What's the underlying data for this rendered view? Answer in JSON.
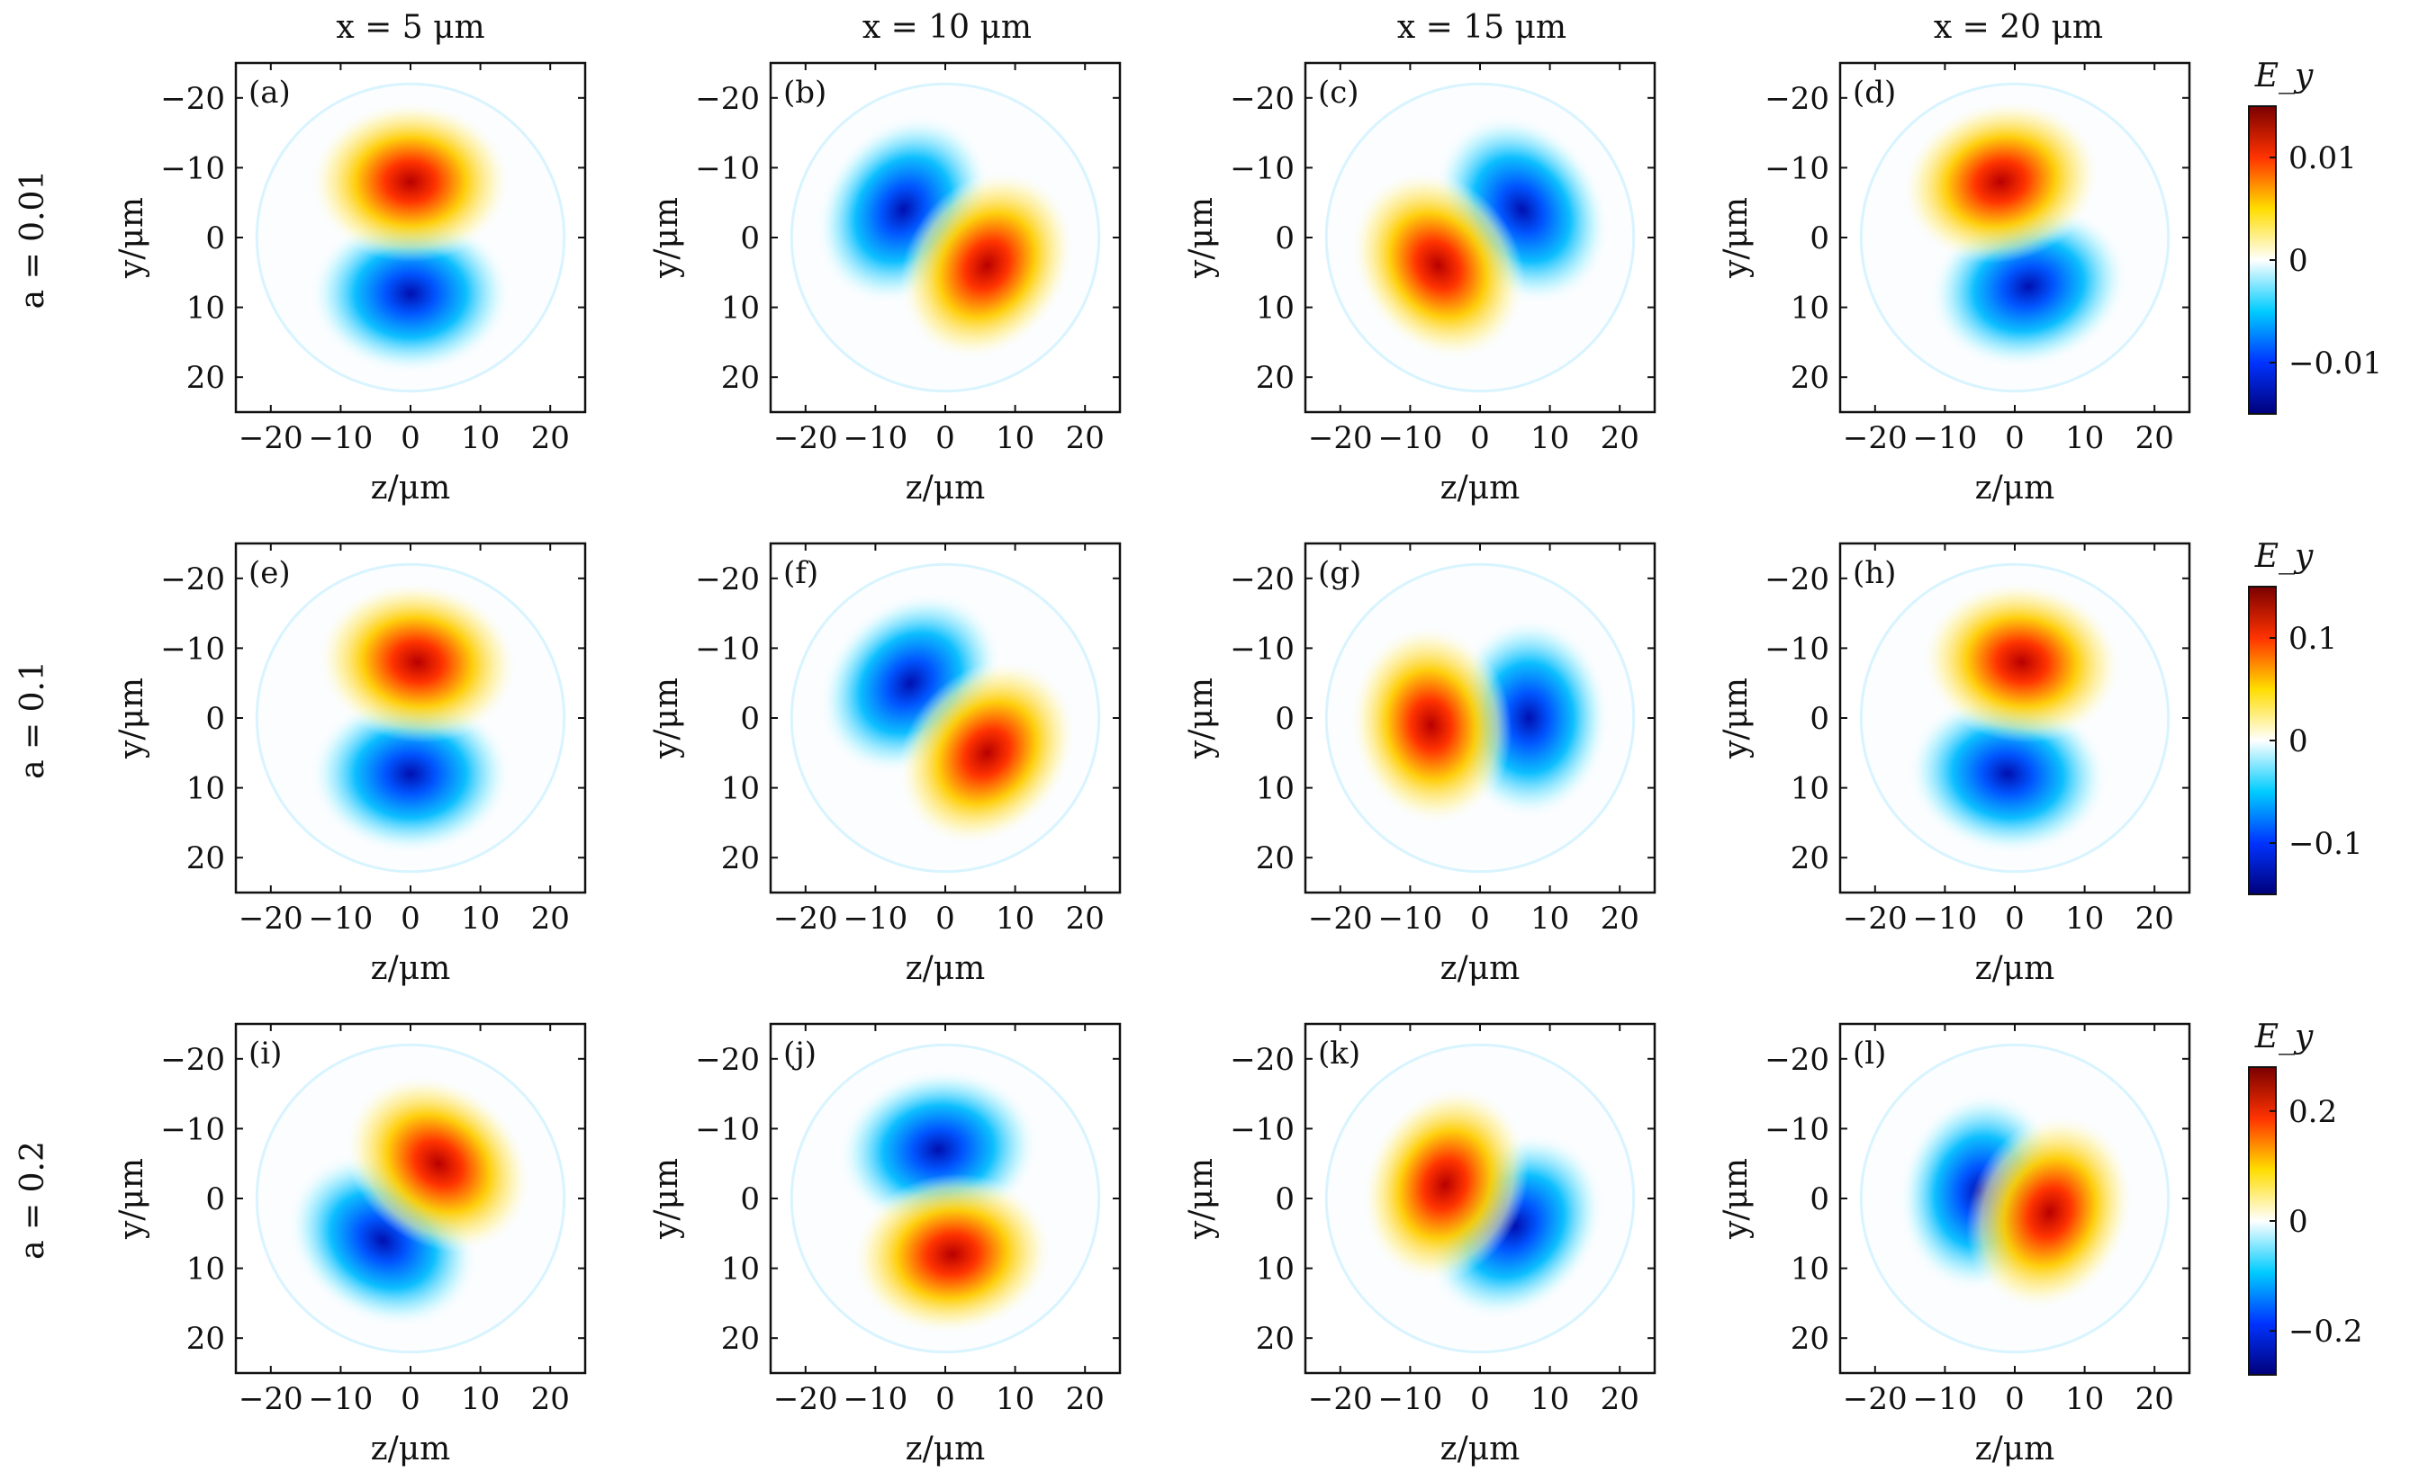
{
  "figure": {
    "column_titles": [
      "x = 5 μm",
      "x = 10 μm",
      "x = 15 μm",
      "x = 20 μm"
    ],
    "row_labels": [
      "a = 0.01",
      "a = 0.1",
      "a = 0.2"
    ],
    "colorbars": [
      {
        "label": "E_y",
        "ticks": [
          0.01,
          0,
          -0.01
        ],
        "tick_labels": [
          "0.01",
          "0",
          "−0.01"
        ],
        "range": [
          -0.015,
          0.015
        ]
      },
      {
        "label": "E_y",
        "ticks": [
          0.1,
          0,
          -0.1
        ],
        "tick_labels": [
          "0.1",
          "0",
          "−0.1"
        ],
        "range": [
          -0.15,
          0.15
        ]
      },
      {
        "label": "E_y",
        "ticks": [
          0.2,
          0,
          -0.2
        ],
        "tick_labels": [
          "0.2",
          "0",
          "−0.2"
        ],
        "range": [
          -0.28,
          0.28
        ]
      }
    ],
    "colormap": [
      "#00007a",
      "#0033ff",
      "#00ccff",
      "#ffffff",
      "#ffdd00",
      "#ff3300",
      "#7a0000"
    ]
  },
  "chart_data": {
    "type": "heatmap",
    "xlabel": "z/μm",
    "ylabel": "y/μm",
    "xlim": [
      -25,
      25
    ],
    "ylim": [
      25,
      -25
    ],
    "xticks": [
      -20,
      -10,
      0,
      10,
      20
    ],
    "xtick_labels": [
      "−20",
      "−10",
      "0",
      "10",
      "20"
    ],
    "yticks": [
      -20,
      -10,
      0,
      10,
      20
    ],
    "ytick_labels": [
      "−20",
      "−10",
      "0",
      "10",
      "20"
    ],
    "panels": [
      {
        "label": "(a)",
        "row": 0,
        "col": 0,
        "x": "5 μm",
        "a": 0.01,
        "positive_lobe": [
          0,
          -8
        ],
        "negative_lobe": [
          0,
          8
        ]
      },
      {
        "label": "(b)",
        "row": 0,
        "col": 1,
        "x": "10 μm",
        "a": 0.01,
        "positive_lobe": [
          6,
          4
        ],
        "negative_lobe": [
          -6,
          -4
        ]
      },
      {
        "label": "(c)",
        "row": 0,
        "col": 2,
        "x": "15 μm",
        "a": 0.01,
        "positive_lobe": [
          -6,
          4
        ],
        "negative_lobe": [
          6,
          -4
        ]
      },
      {
        "label": "(d)",
        "row": 0,
        "col": 3,
        "x": "20 μm",
        "a": 0.01,
        "positive_lobe": [
          -2,
          -8
        ],
        "negative_lobe": [
          2,
          7
        ]
      },
      {
        "label": "(e)",
        "row": 1,
        "col": 0,
        "x": "5 μm",
        "a": 0.1,
        "positive_lobe": [
          1,
          -8
        ],
        "negative_lobe": [
          0,
          8
        ]
      },
      {
        "label": "(f)",
        "row": 1,
        "col": 1,
        "x": "10 μm",
        "a": 0.1,
        "positive_lobe": [
          6,
          5
        ],
        "negative_lobe": [
          -5,
          -5
        ]
      },
      {
        "label": "(g)",
        "row": 1,
        "col": 2,
        "x": "15 μm",
        "a": 0.1,
        "positive_lobe": [
          -7,
          1
        ],
        "negative_lobe": [
          7,
          0
        ]
      },
      {
        "label": "(h)",
        "row": 1,
        "col": 3,
        "x": "20 μm",
        "a": 0.1,
        "positive_lobe": [
          1,
          -8
        ],
        "negative_lobe": [
          -1,
          8
        ]
      },
      {
        "label": "(i)",
        "row": 2,
        "col": 0,
        "x": "5 μm",
        "a": 0.2,
        "positive_lobe": [
          4,
          -5
        ],
        "negative_lobe": [
          -4,
          6
        ]
      },
      {
        "label": "(j)",
        "row": 2,
        "col": 1,
        "x": "10 μm",
        "a": 0.2,
        "positive_lobe": [
          1,
          8
        ],
        "negative_lobe": [
          -1,
          -7
        ]
      },
      {
        "label": "(k)",
        "row": 2,
        "col": 2,
        "x": "15 μm",
        "a": 0.2,
        "positive_lobe": [
          -5,
          -2
        ],
        "negative_lobe": [
          5,
          4
        ]
      },
      {
        "label": "(l)",
        "row": 2,
        "col": 3,
        "x": "20 μm",
        "a": 0.2,
        "positive_lobe": [
          5,
          2
        ],
        "negative_lobe": [
          -5,
          -1
        ]
      }
    ]
  }
}
